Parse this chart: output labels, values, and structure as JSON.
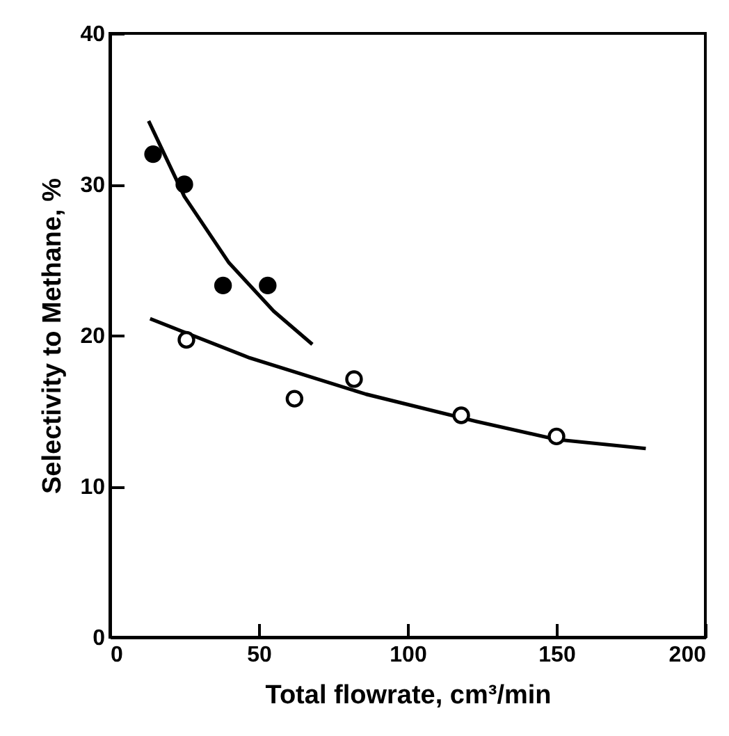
{
  "chart_data": {
    "type": "scatter",
    "xlabel": "Total flowrate, cm³/min",
    "ylabel": "Selectivity to Methane, %",
    "xlim": [
      0,
      200
    ],
    "xticks": [
      0,
      50,
      100,
      150,
      200
    ],
    "ylim": [
      0,
      40
    ],
    "yticks": [
      0,
      10,
      20,
      30,
      40
    ],
    "grid": false,
    "series": [
      {
        "marker": "circle",
        "color": "#000000",
        "x": [
          14.5,
          25,
          38,
          53
        ],
        "values": [
          32,
          30,
          23.3,
          23.3
        ]
      },
      {
        "marker": "circle",
        "color": "#ffffff",
        "x": [
          25.7,
          62,
          82,
          118,
          150
        ],
        "values": [
          19.7,
          15.8,
          17.1,
          14.7,
          13.3
        ]
      },
      {
        "type": "line",
        "marker": "none",
        "color": "#000000",
        "x": [
          13,
          25,
          40,
          55,
          68
        ],
        "values": [
          34.2,
          29.2,
          24.8,
          21.6,
          19.4
        ]
      },
      {
        "type": "line",
        "marker": "none",
        "color": "#000000",
        "x": [
          13.5,
          47,
          86,
          123,
          150,
          180
        ],
        "values": [
          21.1,
          18.5,
          16.1,
          14.3,
          13.1,
          12.5
        ]
      }
    ]
  }
}
